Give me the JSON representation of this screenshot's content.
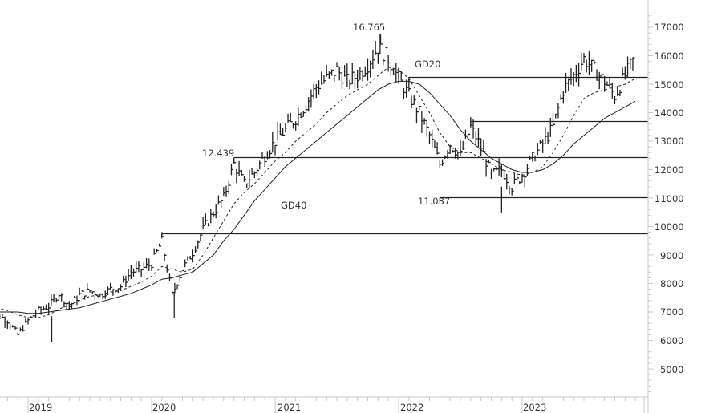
{
  "chart_data": {
    "type": "line",
    "title": "",
    "subtitle": "",
    "xlabel": "",
    "ylabel": "",
    "style": "weekly OHLC bars with moving averages and horizontal support/resistance lines",
    "ylim": [
      4000,
      17500
    ],
    "yticks": [
      5000,
      6000,
      7000,
      8000,
      9000,
      10000,
      11000,
      12000,
      13000,
      14000,
      15000,
      16000,
      17000
    ],
    "ytick_labels": [
      "5000",
      "6000",
      "7000",
      "8000",
      "9000",
      "10000",
      "11000",
      "12000",
      "13000",
      "14000",
      "15000",
      "16000",
      "17000"
    ],
    "xtick_labels": [
      "2019",
      "2020",
      "2021",
      "2022",
      "2023"
    ],
    "grid": false,
    "legend": null,
    "annotations": [
      {
        "text": "16.765",
        "value": 16765,
        "date": "2021-11"
      },
      {
        "text": "12.439",
        "value": 12439,
        "date": "2020-09"
      },
      {
        "text": "11.037",
        "value": 11037,
        "date": "2022-05"
      },
      {
        "text": "GD20",
        "meaning": "20-week moving average (dashed)"
      },
      {
        "text": "GD40",
        "meaning": "40-week moving average (solid)"
      }
    ],
    "horizontal_lines": [
      {
        "value": 15250,
        "from": "2022-02"
      },
      {
        "value": 13700,
        "from": "2022-08"
      },
      {
        "value": 12439,
        "from": "2020-09"
      },
      {
        "value": 11037,
        "from": "2022-05"
      },
      {
        "value": 9750,
        "from": "2020-02"
      }
    ],
    "x": [
      "2018-09",
      "2018-10",
      "2018-11",
      "2018-12",
      "2019-01",
      "2019-02",
      "2019-03",
      "2019-04",
      "2019-05",
      "2019-06",
      "2019-07",
      "2019-08",
      "2019-09",
      "2019-10",
      "2019-11",
      "2019-12",
      "2020-01",
      "2020-02",
      "2020-03",
      "2020-04",
      "2020-05",
      "2020-06",
      "2020-07",
      "2020-08",
      "2020-09",
      "2020-10",
      "2020-11",
      "2020-12",
      "2021-01",
      "2021-02",
      "2021-03",
      "2021-04",
      "2021-05",
      "2021-06",
      "2021-07",
      "2021-08",
      "2021-09",
      "2021-10",
      "2021-11",
      "2021-12",
      "2022-01",
      "2022-02",
      "2022-03",
      "2022-04",
      "2022-05",
      "2022-06",
      "2022-07",
      "2022-08",
      "2022-09",
      "2022-10",
      "2022-11",
      "2022-12",
      "2023-01",
      "2023-02",
      "2023-03",
      "2023-04",
      "2023-05",
      "2023-06",
      "2023-07",
      "2023-08",
      "2023-09",
      "2023-10",
      "2023-11",
      "2023-12"
    ],
    "series": [
      {
        "name": "Close",
        "values": [
          7150,
          6900,
          6700,
          6200,
          6700,
          7050,
          7200,
          7650,
          7200,
          7600,
          7750,
          7600,
          7800,
          7900,
          8400,
          8500,
          8700,
          9500,
          7600,
          8500,
          9100,
          9900,
          10500,
          11000,
          12200,
          11500,
          11900,
          12500,
          13000,
          13400,
          13800,
          14300,
          14900,
          15200,
          15500,
          15100,
          15300,
          15700,
          16300,
          15900,
          15200,
          14600,
          14000,
          13200,
          12200,
          12900,
          12500,
          13500,
          12800,
          11800,
          12000,
          11400,
          11800,
          12400,
          12900,
          13500,
          14800,
          15300,
          15900,
          15500,
          15100,
          14600,
          15300,
          16000
        ]
      },
      {
        "name": "GD20",
        "values": [
          7200,
          7150,
          7050,
          6900,
          6800,
          6800,
          6900,
          7100,
          7250,
          7400,
          7550,
          7600,
          7700,
          7750,
          7900,
          8050,
          8250,
          8600,
          8500,
          8400,
          8500,
          9000,
          9600,
          10200,
          10800,
          11200,
          11500,
          11900,
          12300,
          12600,
          13000,
          13300,
          13600,
          14000,
          14300,
          14600,
          14800,
          15000,
          15300,
          15600,
          15500,
          15200,
          14600,
          14000,
          13300,
          12800,
          12600,
          12600,
          12400,
          12200,
          12000,
          11900,
          11800,
          11900,
          12100,
          12600,
          13200,
          13900,
          14500,
          14700,
          14800,
          14900,
          15000,
          15200
        ]
      },
      {
        "name": "GD40",
        "values": [
          7000,
          7000,
          7000,
          7000,
          6950,
          6950,
          7000,
          7050,
          7100,
          7150,
          7250,
          7350,
          7450,
          7550,
          7650,
          7800,
          7950,
          8150,
          8200,
          8300,
          8400,
          8700,
          9000,
          9500,
          9900,
          10400,
          10900,
          11300,
          11700,
          12100,
          12400,
          12700,
          13000,
          13300,
          13600,
          13900,
          14200,
          14500,
          14800,
          15000,
          15100,
          15100,
          15000,
          14700,
          14300,
          13900,
          13400,
          13000,
          12700,
          12400,
          12200,
          12000,
          11900,
          11900,
          12000,
          12200,
          12500,
          12900,
          13200,
          13500,
          13800,
          14000,
          14200,
          14400
        ]
      }
    ],
    "peak": 16765,
    "trough_2019": 5950,
    "covid_low_2020": 6800,
    "low_2022": 10500,
    "last": 16050
  },
  "axis": {
    "y_labels": [
      "17000",
      "16000",
      "15000",
      "14000",
      "13000",
      "12000",
      "11000",
      "10000",
      "9000",
      "8000",
      "7000",
      "6000",
      "5000"
    ],
    "x_labels": [
      "2019",
      "2020",
      "2021",
      "2022",
      "2023"
    ]
  },
  "labels": {
    "peak": "16.765",
    "level_12439": "12.439",
    "level_11037": "11.037",
    "gd20": "GD20",
    "gd40": "GD40"
  }
}
